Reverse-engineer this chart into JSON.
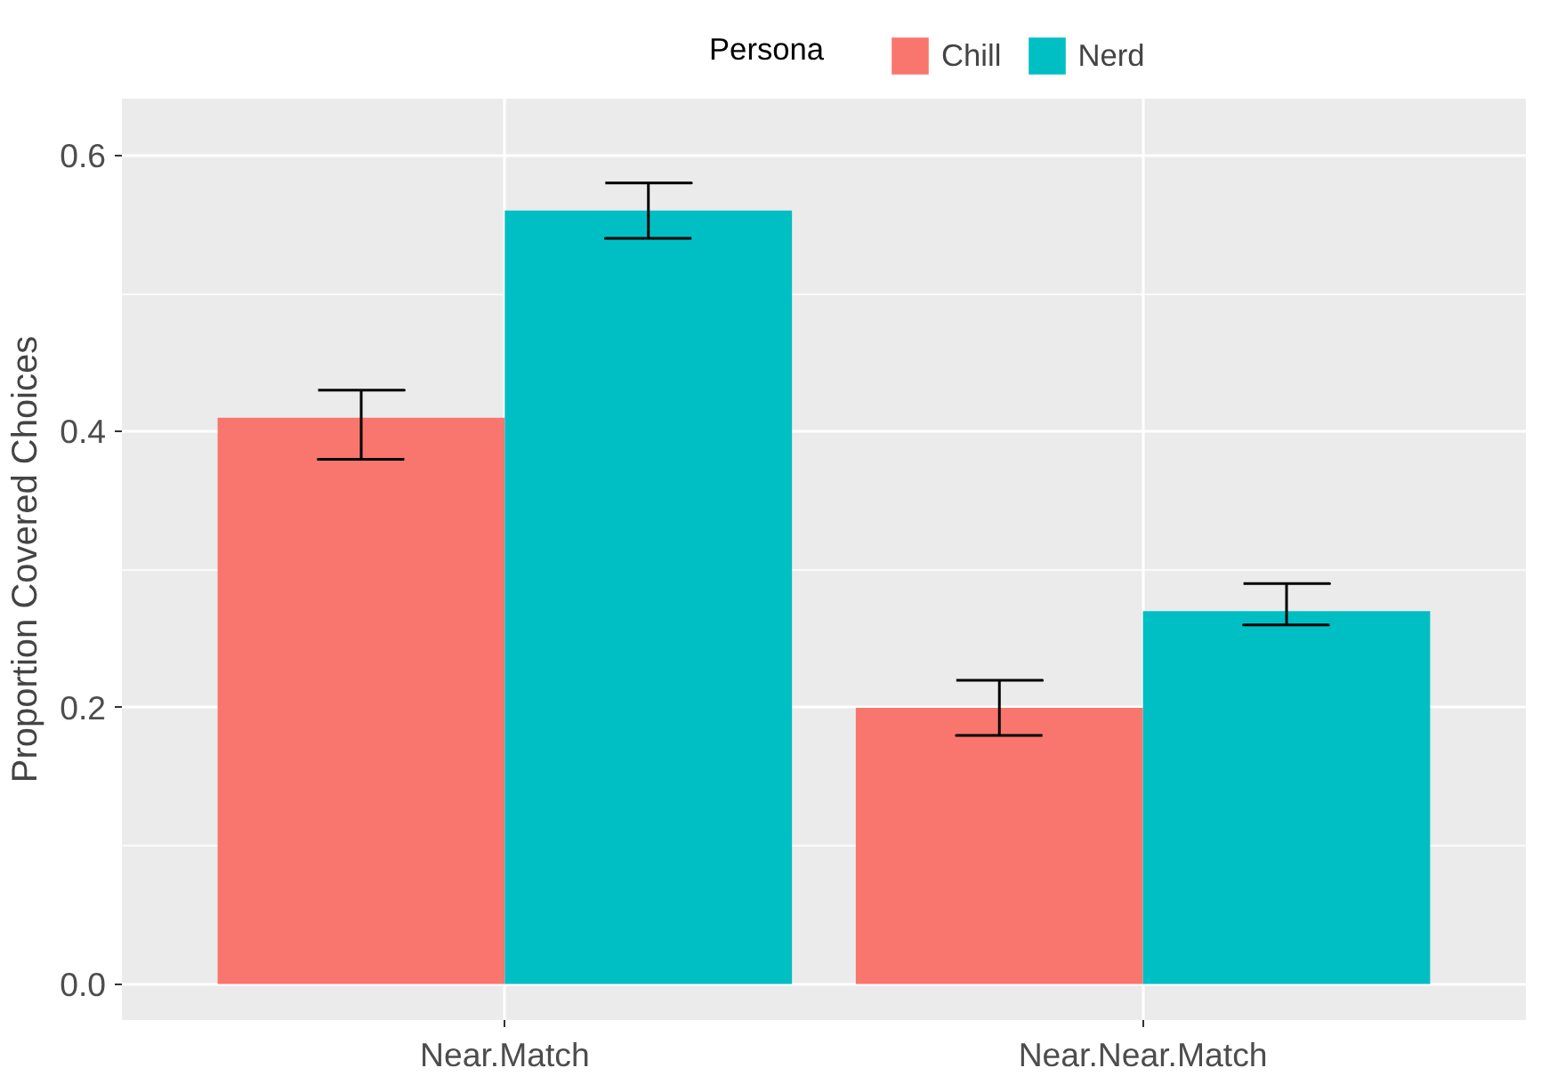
{
  "chart_data": {
    "type": "bar",
    "ylabel": "Proportion Covered Choices",
    "legend_title": "Persona",
    "categories": [
      "Near.Match",
      "Near.Near.Match"
    ],
    "series": [
      {
        "name": "Chill",
        "color": "#f8766d",
        "values": [
          0.41,
          0.2
        ],
        "errors": [
          [
            0.38,
            0.43
          ],
          [
            0.18,
            0.22
          ]
        ]
      },
      {
        "name": "Nerd",
        "color": "#00bfc4",
        "values": [
          0.56,
          0.27
        ],
        "errors": [
          [
            0.54,
            0.58
          ],
          [
            0.26,
            0.29
          ]
        ]
      }
    ],
    "ylim": [
      -0.026,
      0.641
    ],
    "yticks": [
      {
        "value": 0,
        "label": "0.0"
      },
      {
        "value": 0.2,
        "label": "0.2"
      },
      {
        "value": 0.4,
        "label": "0.4"
      },
      {
        "value": 0.6,
        "label": "0.6"
      }
    ],
    "grid": true,
    "legend": "top"
  }
}
